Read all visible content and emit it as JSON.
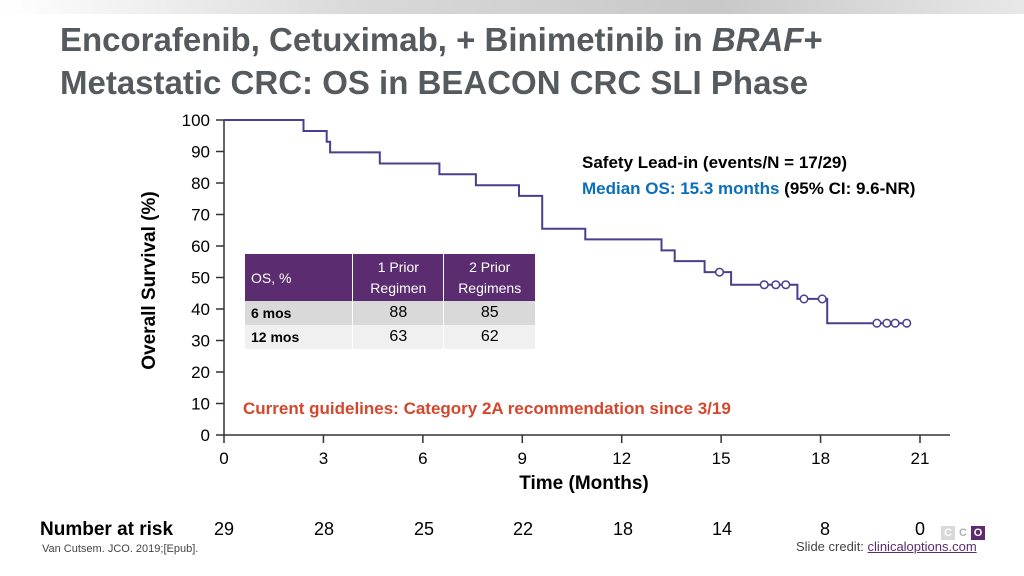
{
  "slide": {
    "title_part1": "Encorafenib, Cetuximab, + Binimetinib in ",
    "title_italic": "BRAF",
    "title_part2": "+",
    "title_line2": "Metastatic CRC: OS in BEACON CRC SLI Phase",
    "reference": "Van Cutsem. JCO. 2019;[Epub].",
    "credit_prefix": "Slide credit: ",
    "credit_link": "clinicaloptions.com",
    "logo_letters": [
      "C",
      "C",
      "O"
    ]
  },
  "colors": {
    "curve": "#4a3f8f",
    "table_header": "#5b2c6f",
    "median_text": "#0a6fb8",
    "guideline_text": "#d5462c",
    "title_text": "#555a5f"
  },
  "annotation": {
    "line1": "Safety Lead-in (events/N = 17/29)",
    "median": "Median OS: 15.3 months",
    "ci": " (95% CI: 9.6-NR)"
  },
  "guideline": "Current guidelines: Category 2A recommendation since 3/19",
  "os_table": {
    "header": [
      "OS, %",
      "1 Prior Regimen",
      "2 Prior Regimens"
    ],
    "header_line1": [
      "1 Prior",
      "2 Prior"
    ],
    "header_line2": [
      "Regimen",
      "Regimens"
    ],
    "rows": [
      {
        "label": "6 mos",
        "values": [
          "88",
          "85"
        ]
      },
      {
        "label": "12 mos",
        "values": [
          "63",
          "62"
        ]
      }
    ]
  },
  "number_at_risk": {
    "label": "Number at risk",
    "values": [
      "29",
      "28",
      "25",
      "22",
      "18",
      "14",
      "8",
      "0"
    ]
  },
  "chart_data": {
    "type": "line",
    "xlabel": "Time (Months)",
    "ylabel": "Overall Survival (%)",
    "xlim": [
      0,
      21
    ],
    "ylim": [
      0,
      100
    ],
    "xticks": [
      0,
      3,
      6,
      9,
      12,
      15,
      18,
      21
    ],
    "yticks": [
      0,
      10,
      20,
      30,
      40,
      50,
      60,
      70,
      80,
      90,
      100
    ],
    "grid": false,
    "step": true,
    "series": [
      {
        "points": [
          [
            0,
            100
          ],
          [
            2.4,
            100
          ],
          [
            2.4,
            96.5
          ],
          [
            3.1,
            96.5
          ],
          [
            3.1,
            93.1
          ],
          [
            3.2,
            93.1
          ],
          [
            3.2,
            89.7
          ],
          [
            4.7,
            89.7
          ],
          [
            4.7,
            86.2
          ],
          [
            6.5,
            86.2
          ],
          [
            6.5,
            82.8
          ],
          [
            7.6,
            82.8
          ],
          [
            7.6,
            79.3
          ],
          [
            8.9,
            79.3
          ],
          [
            8.9,
            75.9
          ],
          [
            9.6,
            75.9
          ],
          [
            9.6,
            72.4
          ],
          [
            9.6,
            72.4
          ],
          [
            9.6,
            65.5
          ],
          [
            10.9,
            65.5
          ],
          [
            10.9,
            62.1
          ],
          [
            13.2,
            62.1
          ],
          [
            13.2,
            58.6
          ],
          [
            13.6,
            58.6
          ],
          [
            13.6,
            55.2
          ],
          [
            14.5,
            55.2
          ],
          [
            14.5,
            51.7
          ],
          [
            15.3,
            51.7
          ],
          [
            15.3,
            47.7
          ],
          [
            17.3,
            47.7
          ],
          [
            17.3,
            43.2
          ],
          [
            18.2,
            43.2
          ],
          [
            18.2,
            35.5
          ],
          [
            20.6,
            35.5
          ]
        ],
        "censored": [
          [
            14.95,
            51.7
          ],
          [
            16.3,
            47.7
          ],
          [
            16.65,
            47.7
          ],
          [
            16.95,
            47.7
          ],
          [
            17.5,
            43.2
          ],
          [
            18.05,
            43.2
          ],
          [
            19.7,
            35.5
          ],
          [
            20.0,
            35.5
          ],
          [
            20.25,
            35.5
          ],
          [
            20.6,
            35.5
          ]
        ]
      }
    ]
  }
}
